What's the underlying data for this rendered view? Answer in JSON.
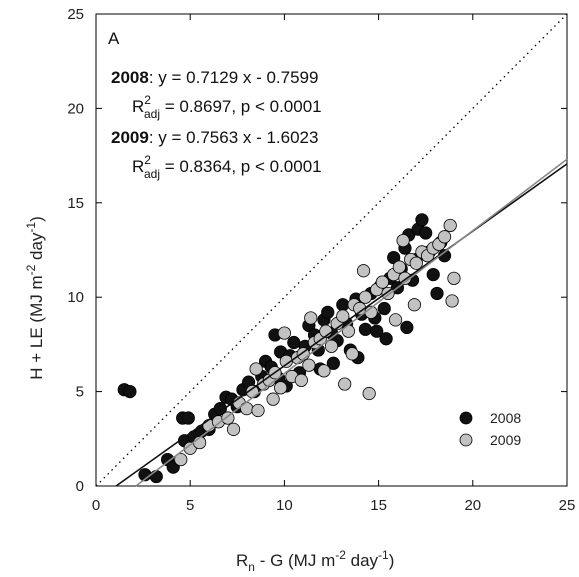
{
  "chart_data": {
    "type": "scatter",
    "panel_label": "A",
    "xlim": [
      0,
      25
    ],
    "ylim": [
      0,
      25
    ],
    "x_ticks": [
      0,
      5,
      10,
      15,
      20,
      25
    ],
    "y_ticks": [
      0,
      5,
      10,
      15,
      20,
      25
    ],
    "xlabel": {
      "base": "R",
      "base_sub": "n",
      "main": " - G (MJ m",
      "sup1": "-2",
      "mid": " day",
      "sup2": "-1",
      "end": ")"
    },
    "ylabel": {
      "main": "H + LE (MJ m",
      "sup1": "-2",
      "mid": " day",
      "sup2": "-1",
      "end": ")"
    },
    "one_to_one_line": true,
    "legend": {
      "placement": "bottom-right",
      "entries": [
        "2008",
        "2009"
      ]
    },
    "annotations": {
      "eq2008_year": "2008",
      "eq2008_text": ": y = 0.7129 x - 0.7599",
      "r2_2008_rest": " = 0.8697, p < 0.0001",
      "eq2009_year": "2009",
      "eq2009_text": ": y = 0.7563 x - 1.6023",
      "r2_2009_rest": " = 0.8364, p < 0.0001",
      "r2_base": "R",
      "r2_sup": "2",
      "r2_sub": "adj"
    },
    "series": [
      {
        "name": "2008",
        "color": "#111111",
        "fit": {
          "slope": 0.7129,
          "intercept": -0.7599
        },
        "points": [
          [
            1.5,
            5.1
          ],
          [
            1.8,
            5.0
          ],
          [
            2.6,
            0.6
          ],
          [
            3.2,
            0.5
          ],
          [
            3.8,
            1.4
          ],
          [
            4.1,
            1.0
          ],
          [
            4.6,
            3.6
          ],
          [
            4.9,
            3.6
          ],
          [
            4.7,
            2.4
          ],
          [
            5.2,
            2.6
          ],
          [
            5.6,
            2.9
          ],
          [
            6.0,
            3.0
          ],
          [
            6.3,
            3.8
          ],
          [
            6.6,
            4.1
          ],
          [
            6.9,
            4.7
          ],
          [
            7.2,
            4.6
          ],
          [
            7.5,
            4.2
          ],
          [
            7.8,
            5.1
          ],
          [
            8.1,
            5.5
          ],
          [
            8.4,
            5.0
          ],
          [
            8.8,
            5.8
          ],
          [
            9.0,
            6.6
          ],
          [
            9.3,
            6.3
          ],
          [
            9.5,
            8.0
          ],
          [
            9.8,
            7.1
          ],
          [
            10.1,
            5.3
          ],
          [
            10.3,
            6.9
          ],
          [
            10.5,
            7.6
          ],
          [
            10.8,
            6.0
          ],
          [
            11.1,
            7.4
          ],
          [
            11.3,
            8.5
          ],
          [
            11.6,
            8.0
          ],
          [
            11.8,
            7.2
          ],
          [
            12.1,
            8.8
          ],
          [
            12.3,
            9.2
          ],
          [
            12.5,
            8.1
          ],
          [
            12.8,
            7.7
          ],
          [
            13.1,
            9.6
          ],
          [
            13.3,
            8.6
          ],
          [
            13.5,
            7.2
          ],
          [
            13.8,
            9.9
          ],
          [
            14.1,
            9.1
          ],
          [
            14.3,
            8.3
          ],
          [
            14.6,
            10.2
          ],
          [
            14.8,
            8.9
          ],
          [
            15.1,
            10.6
          ],
          [
            15.3,
            9.4
          ],
          [
            15.6,
            11.0
          ],
          [
            15.8,
            12.1
          ],
          [
            16.0,
            10.5
          ],
          [
            16.2,
            11.5
          ],
          [
            16.4,
            12.6
          ],
          [
            16.6,
            13.3
          ],
          [
            16.8,
            10.9
          ],
          [
            17.0,
            12.0
          ],
          [
            17.1,
            13.6
          ],
          [
            17.3,
            14.1
          ],
          [
            17.5,
            13.4
          ],
          [
            17.7,
            12.4
          ],
          [
            17.9,
            11.2
          ],
          [
            18.1,
            10.2
          ],
          [
            18.3,
            12.9
          ],
          [
            18.5,
            12.2
          ],
          [
            16.5,
            8.4
          ],
          [
            15.4,
            7.8
          ],
          [
            14.9,
            8.2
          ],
          [
            13.9,
            6.8
          ],
          [
            12.6,
            6.5
          ],
          [
            11.9,
            6.2
          ],
          [
            9.7,
            5.7
          ]
        ]
      },
      {
        "name": "2009",
        "color": "#c2c2c2",
        "fit": {
          "slope": 0.7563,
          "intercept": -1.6023
        },
        "points": [
          [
            4.5,
            1.4
          ],
          [
            5.0,
            2.0
          ],
          [
            5.5,
            2.3
          ],
          [
            6.0,
            3.2
          ],
          [
            6.5,
            3.4
          ],
          [
            7.0,
            3.6
          ],
          [
            7.3,
            3.0
          ],
          [
            7.6,
            4.4
          ],
          [
            8.0,
            4.1
          ],
          [
            8.3,
            5.0
          ],
          [
            8.6,
            4.0
          ],
          [
            8.9,
            5.4
          ],
          [
            9.2,
            5.6
          ],
          [
            9.5,
            6.0
          ],
          [
            9.8,
            5.2
          ],
          [
            10.1,
            6.6
          ],
          [
            10.4,
            5.8
          ],
          [
            10.7,
            6.8
          ],
          [
            11.0,
            7.0
          ],
          [
            11.3,
            6.4
          ],
          [
            11.6,
            7.6
          ],
          [
            11.9,
            7.8
          ],
          [
            12.2,
            8.2
          ],
          [
            12.5,
            7.4
          ],
          [
            12.8,
            8.6
          ],
          [
            13.1,
            9.0
          ],
          [
            13.4,
            8.2
          ],
          [
            13.7,
            9.6
          ],
          [
            14.0,
            9.4
          ],
          [
            14.3,
            10.0
          ],
          [
            14.6,
            9.2
          ],
          [
            14.9,
            10.4
          ],
          [
            15.2,
            10.8
          ],
          [
            15.5,
            10.2
          ],
          [
            15.8,
            11.2
          ],
          [
            16.1,
            11.6
          ],
          [
            16.4,
            11.0
          ],
          [
            16.7,
            12.0
          ],
          [
            17.0,
            11.8
          ],
          [
            17.3,
            12.4
          ],
          [
            17.6,
            12.2
          ],
          [
            17.9,
            12.6
          ],
          [
            18.2,
            12.8
          ],
          [
            18.5,
            13.2
          ],
          [
            18.8,
            13.8
          ],
          [
            19.0,
            11.0
          ],
          [
            18.9,
            9.8
          ],
          [
            14.5,
            4.9
          ],
          [
            13.2,
            5.4
          ],
          [
            12.1,
            6.1
          ],
          [
            10.9,
            5.6
          ],
          [
            9.4,
            4.6
          ],
          [
            16.9,
            9.6
          ],
          [
            15.9,
            8.8
          ],
          [
            13.6,
            7.0
          ],
          [
            11.4,
            8.9
          ],
          [
            10.0,
            8.1
          ],
          [
            8.5,
            6.2
          ],
          [
            14.2,
            11.4
          ],
          [
            16.3,
            13.0
          ]
        ]
      }
    ]
  }
}
